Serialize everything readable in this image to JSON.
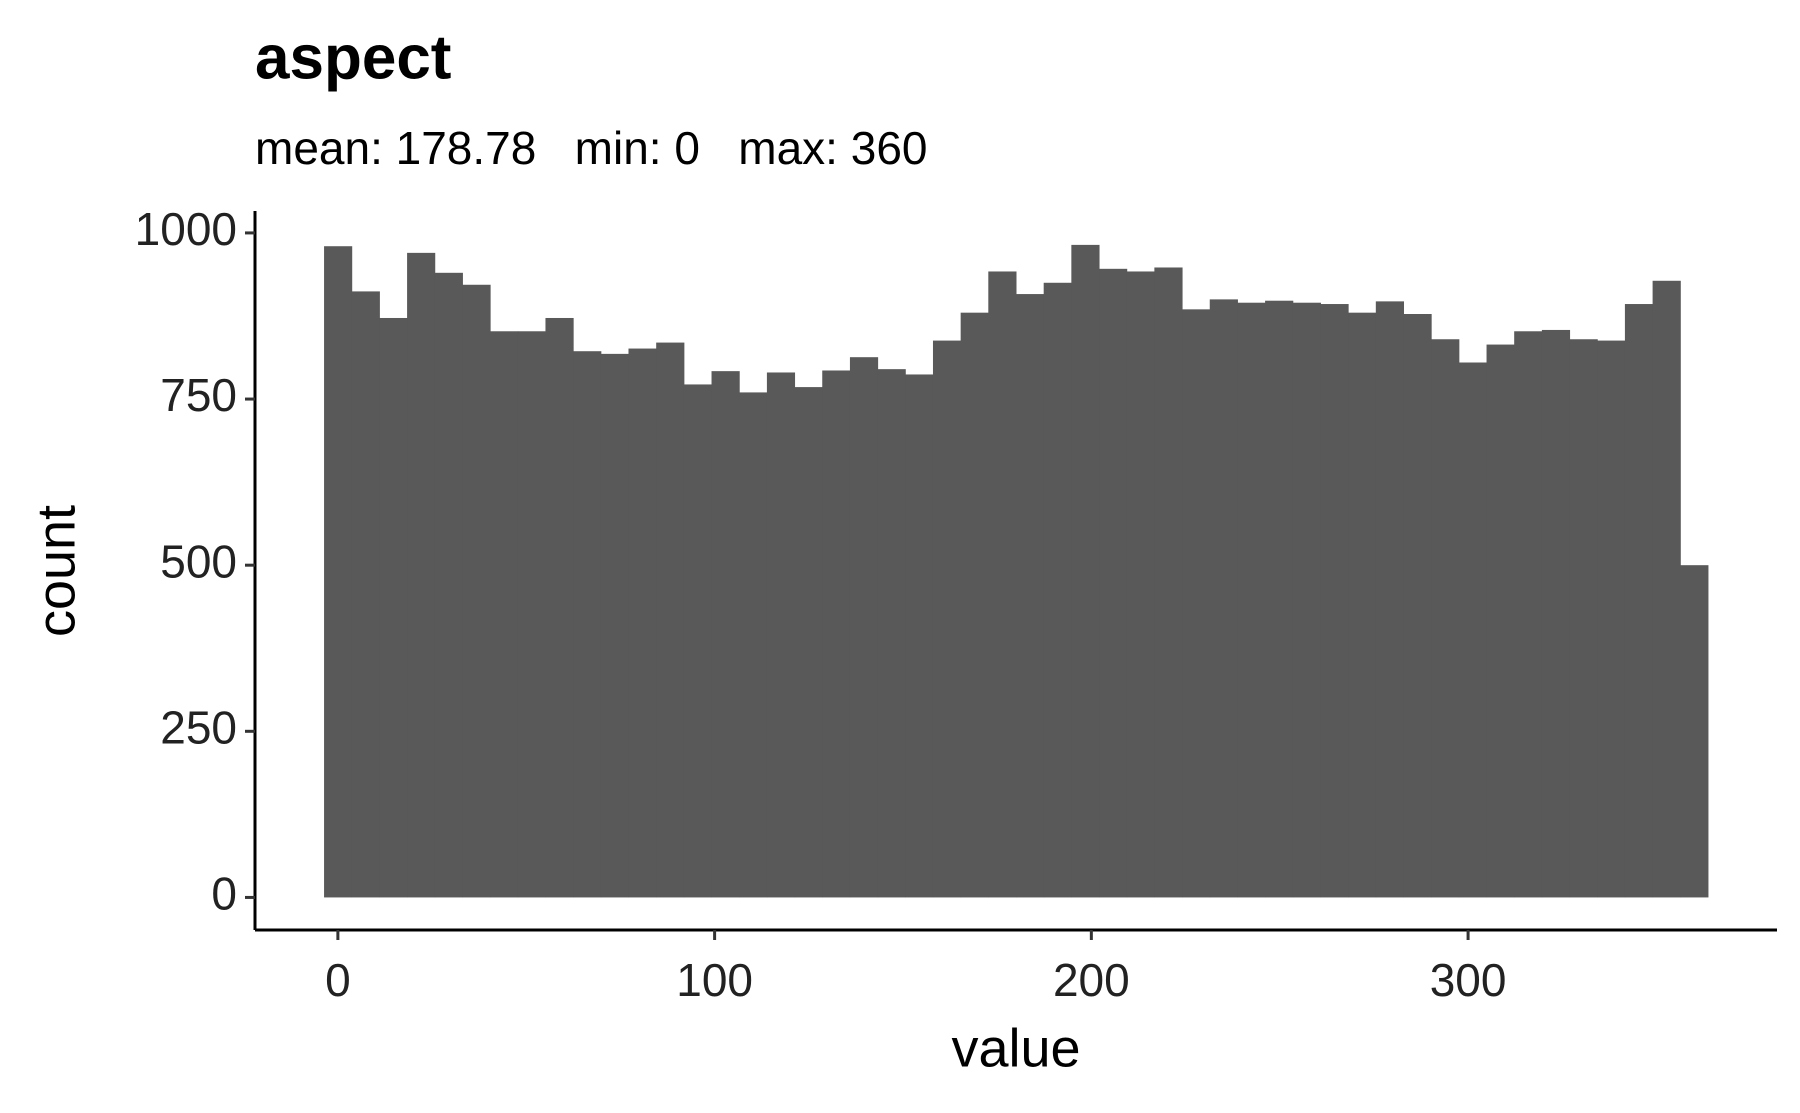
{
  "chart_data": {
    "type": "histogram",
    "title": "aspect",
    "subtitle": "mean: 178.78   min: 0   max: 360",
    "x_label": "value",
    "y_label": "count",
    "color": "#595959",
    "bins": [
      -3.67,
      3.67,
      11.02,
      18.37,
      25.71,
      33.06,
      40.41,
      47.76,
      55.1,
      62.45,
      69.8,
      77.14,
      84.49,
      91.84,
      99.18,
      106.53,
      113.88,
      121.22,
      128.57,
      135.92,
      143.27,
      150.61,
      157.96,
      165.31,
      172.65,
      180.0,
      187.35,
      194.69,
      202.04,
      209.39,
      216.73,
      224.08,
      231.43,
      238.78,
      246.12,
      253.47,
      260.82,
      268.16,
      275.51,
      282.86,
      290.2,
      297.55,
      304.9,
      312.24,
      319.59,
      326.94,
      334.29,
      341.63,
      348.98,
      356.33,
      363.67
    ],
    "values": [
      980,
      912,
      872,
      970,
      940,
      922,
      852,
      852,
      872,
      822,
      818,
      826,
      835,
      772,
      792,
      760,
      790,
      768,
      793,
      813,
      795,
      787,
      838,
      880,
      942,
      908,
      925,
      982,
      946,
      942,
      948,
      885,
      900,
      895,
      898,
      895,
      893,
      880,
      897,
      878,
      840,
      805,
      832,
      852,
      854,
      840,
      838,
      893,
      928,
      500
    ],
    "xlim": [
      -22,
      382
    ],
    "xticks": [
      0,
      100,
      200,
      300
    ],
    "ylim": [
      -49,
      1033
    ],
    "yticks": [
      0,
      250,
      500,
      750,
      1000
    ]
  }
}
